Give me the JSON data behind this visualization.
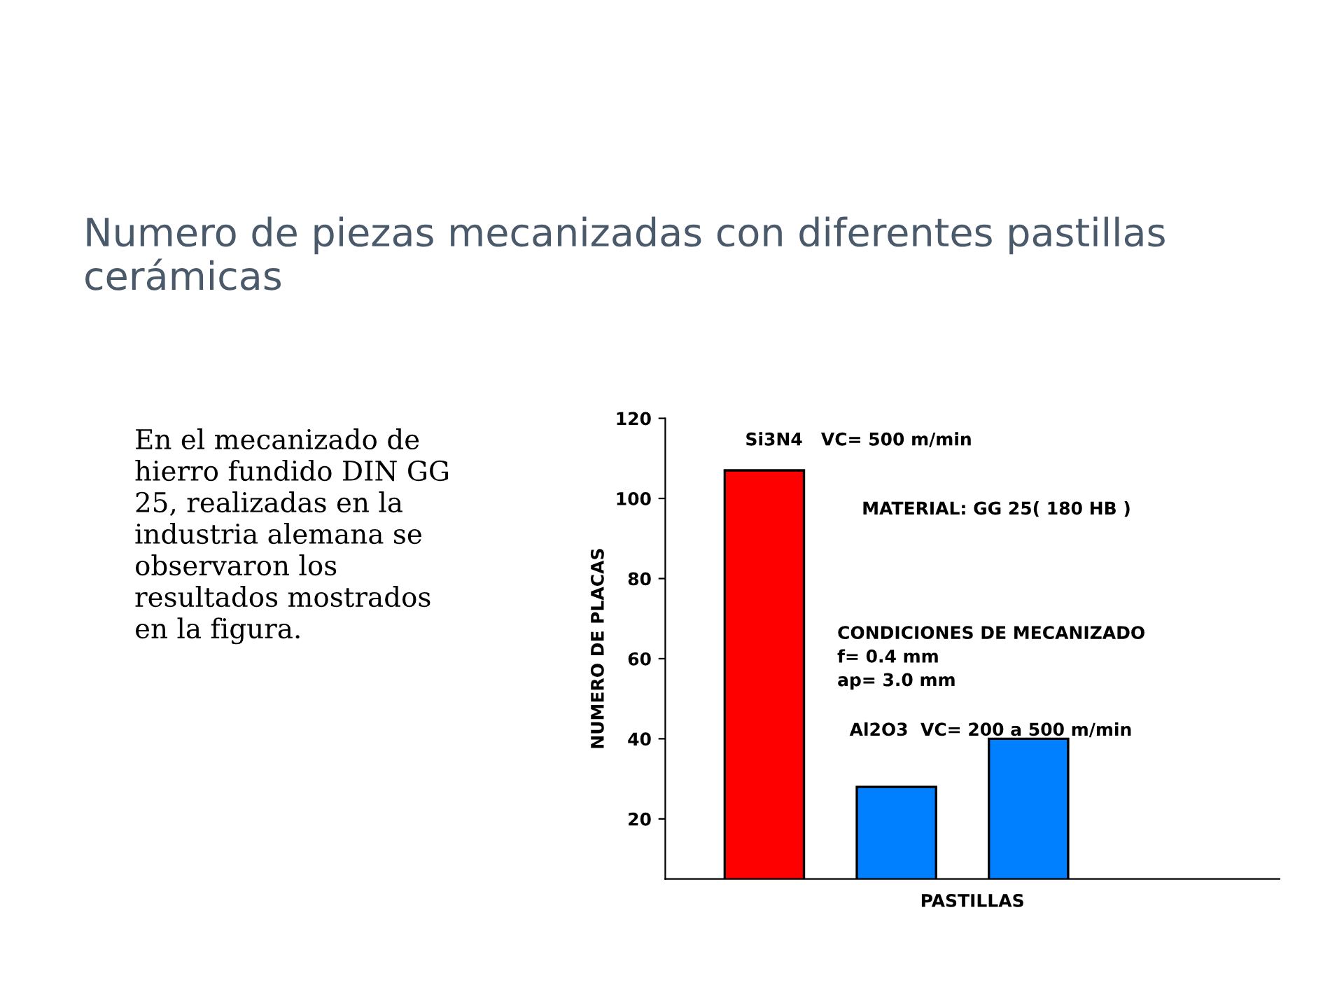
{
  "chart_data": {
    "type": "bar",
    "title": "Numero de piezas mecanizadas con diferentes pastillas cerámicas",
    "xlabel": "PASTILLAS",
    "ylabel": "NUMERO DE PLACAS",
    "categories": [
      null,
      null,
      null
    ],
    "values": [
      107,
      28,
      40
    ],
    "colors": [
      "#ff0000",
      "#0080ff",
      "#0080ff"
    ],
    "ylim": [
      5,
      120
    ],
    "yticks": [
      20,
      40,
      60,
      80,
      100,
      120
    ],
    "grid": false,
    "legend": false,
    "annotations": [
      "Si3N4   VC= 500 m/min",
      "MATERIAL: GG 25( 180 HB )",
      "CONDICIONES DE MECANIZADO\nf= 0.4 mm\nap= 3.0 mm",
      "Al2O3  VC= 200 a 500 m/min",
      "En el mecanizado de\nhierro fundido DIN GG\n25, realizadas en la\nindustria alemana se\nobservaron los\nresultados mostrados\nen la figura."
    ]
  }
}
